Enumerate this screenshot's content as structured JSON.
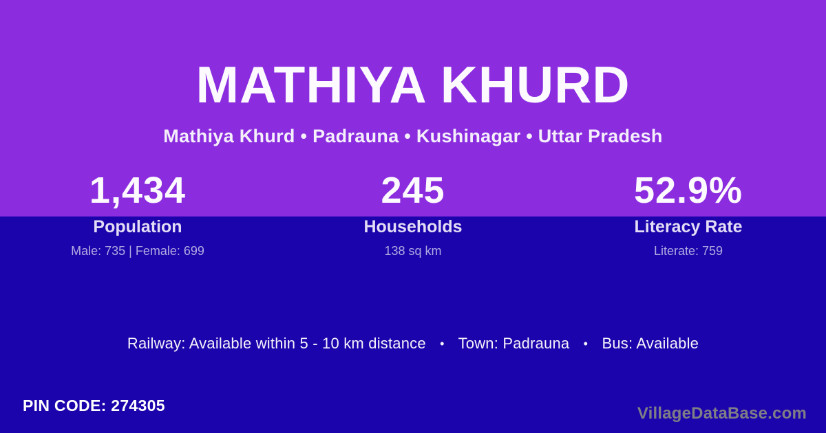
{
  "theme": {
    "top_bg": "#8B2CDF",
    "bottom_bg": "#1B04AB",
    "text_primary": "#FFFFFF",
    "text_muted_lavender": "#B1AAE2",
    "watermark_gray": "#7E7E86"
  },
  "header": {
    "title": "MATHIYA KHURD",
    "subtitle": "Mathiya Khurd • Padrauna • Kushinagar • Uttar Pradesh"
  },
  "stats": [
    {
      "value": "1,434",
      "label": "Population",
      "detail": "Male: 735 | Female: 699"
    },
    {
      "value": "245",
      "label": "Households",
      "detail": "138 sq km"
    },
    {
      "value": "52.9%",
      "label": "Literacy Rate",
      "detail": "Literate: 759"
    }
  ],
  "amenities": {
    "railway": "Railway: Available within 5 - 10 km distance",
    "town": "Town: Padrauna",
    "bus": "Bus: Available",
    "separator": "•"
  },
  "footer": {
    "pin_code": "PIN CODE: 274305",
    "watermark": "VillageDataBase.com"
  }
}
